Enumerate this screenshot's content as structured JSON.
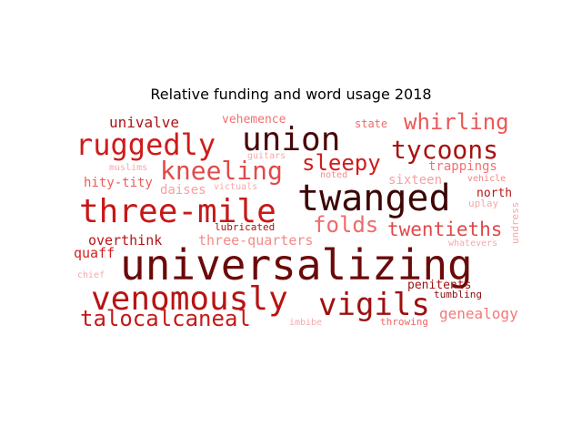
{
  "chart_data": {
    "type": "wordcloud",
    "title": "Relative funding and word usage 2018",
    "words": [
      {
        "text": "universalizing",
        "weight": 100,
        "color": "#6b0a0a"
      },
      {
        "text": "twanged",
        "weight": 78,
        "color": "#3d0606"
      },
      {
        "text": "venomously",
        "weight": 70,
        "color": "#b81414"
      },
      {
        "text": "three-mile",
        "weight": 69,
        "color": "#c81818"
      },
      {
        "text": "union",
        "weight": 67,
        "color": "#4a0707"
      },
      {
        "text": "ruggedly",
        "weight": 61,
        "color": "#d01a1a"
      },
      {
        "text": "vigils",
        "weight": 60,
        "color": "#9e1010"
      },
      {
        "text": "tycoons",
        "weight": 52,
        "color": "#a81212"
      },
      {
        "text": "kneeling",
        "weight": 52,
        "color": "#e14a4a"
      },
      {
        "text": "talocalcaneal",
        "weight": 48,
        "color": "#c41a1a"
      },
      {
        "text": "whirling",
        "weight": 45,
        "color": "#ee5656"
      },
      {
        "text": "sleepy",
        "weight": 45,
        "color": "#d01c1c"
      },
      {
        "text": "folds",
        "weight": 44,
        "color": "#f06a6a"
      },
      {
        "text": "twentieths",
        "weight": 40,
        "color": "#e14848"
      },
      {
        "text": "genealogy",
        "weight": 32,
        "color": "#f27a7a"
      },
      {
        "text": "overthink",
        "weight": 30,
        "color": "#b81414"
      },
      {
        "text": "three-quarters",
        "weight": 30,
        "color": "#f48a8a"
      },
      {
        "text": "univalve",
        "weight": 30,
        "color": "#aa1414"
      },
      {
        "text": "trappings",
        "weight": 28,
        "color": "#f27070"
      },
      {
        "text": "sixteen",
        "weight": 28,
        "color": "#f7a0a0"
      },
      {
        "text": "hity-tity",
        "weight": 27,
        "color": "#ec5a5a"
      },
      {
        "text": "daises",
        "weight": 27,
        "color": "#f6a0a0"
      },
      {
        "text": "quaff",
        "weight": 27,
        "color": "#d42020"
      },
      {
        "text": "vehemence",
        "weight": 25,
        "color": "#f27070"
      },
      {
        "text": "penitents",
        "weight": 24,
        "color": "#9e1010"
      },
      {
        "text": "north",
        "weight": 24,
        "color": "#b81414"
      },
      {
        "text": "state",
        "weight": 23,
        "color": "#ec6a6a"
      },
      {
        "text": "throwing",
        "weight": 21,
        "color": "#ee6666"
      },
      {
        "text": "tumbling",
        "weight": 20,
        "color": "#8a0c0c"
      },
      {
        "text": "lubricated",
        "weight": 20,
        "color": "#a81212"
      },
      {
        "text": "muslims",
        "weight": 18,
        "color": "#f7a8a8"
      },
      {
        "text": "vehicle",
        "weight": 18,
        "color": "#f48484"
      },
      {
        "text": "uplay",
        "weight": 18,
        "color": "#f7a8a8"
      },
      {
        "text": "chief",
        "weight": 18,
        "color": "#f7a8a8"
      },
      {
        "text": "guitars",
        "weight": 17,
        "color": "#f7a8a8"
      },
      {
        "text": "noted",
        "weight": 17,
        "color": "#f48a8a"
      },
      {
        "text": "victuals",
        "weight": 16,
        "color": "#f7a8a8"
      },
      {
        "text": "imbibe",
        "weight": 16,
        "color": "#f7a8a8"
      },
      {
        "text": "whatevers",
        "weight": 16,
        "color": "#f7a8a8"
      },
      {
        "text": "undress",
        "weight": 16,
        "color": "#f7a8a8"
      }
    ]
  }
}
